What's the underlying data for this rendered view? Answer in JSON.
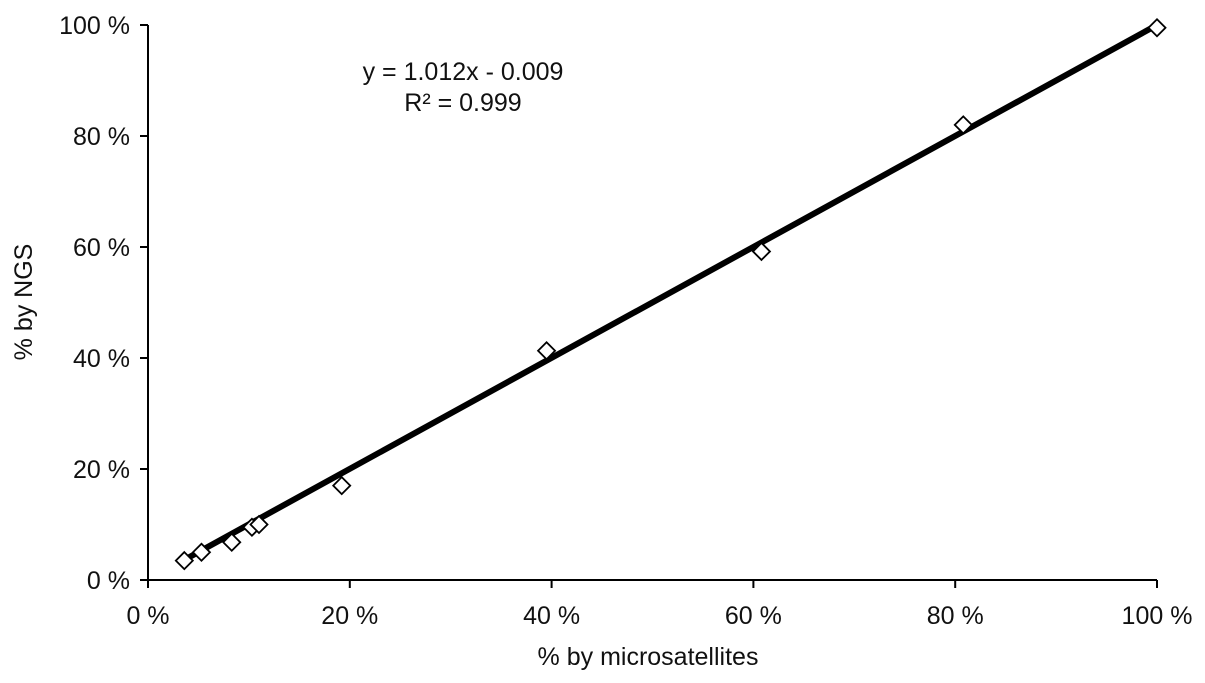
{
  "chart_data": {
    "type": "scatter",
    "xlabel": "% by microsatellites",
    "ylabel": "% by NGS",
    "xlim": [
      0,
      100
    ],
    "ylim": [
      0,
      100
    ],
    "x_ticks": [
      "0 %",
      "20 %",
      "40 %",
      "60 %",
      "80 %",
      "100 %"
    ],
    "y_ticks": [
      "0 %",
      "20 %",
      "40 %",
      "60 %",
      "80 %",
      "100 %"
    ],
    "grid": false,
    "marker": "open-diamond",
    "points": [
      {
        "x": 3.6,
        "y": 3.5
      },
      {
        "x": 5.3,
        "y": 5.0
      },
      {
        "x": 8.3,
        "y": 6.8
      },
      {
        "x": 10.3,
        "y": 9.5
      },
      {
        "x": 11.0,
        "y": 10.0
      },
      {
        "x": 19.2,
        "y": 17.0
      },
      {
        "x": 39.5,
        "y": 41.3
      },
      {
        "x": 60.8,
        "y": 59.2
      },
      {
        "x": 80.8,
        "y": 82.0
      },
      {
        "x": 100.0,
        "y": 99.5
      }
    ],
    "trendline": {
      "slope": 1.012,
      "intercept": -0.009,
      "x_range": [
        3.6,
        100.0
      ]
    },
    "annotations": {
      "equation": "y = 1.012x - 0.009",
      "r_squared": "R² = 0.999"
    }
  }
}
